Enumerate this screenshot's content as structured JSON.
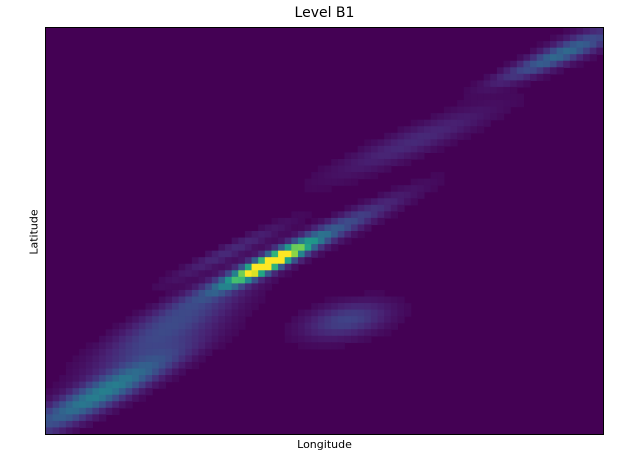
{
  "chart_data": {
    "type": "heatmap",
    "title": "Level B1",
    "xlabel": "Longitude",
    "ylabel": "Latitude",
    "colormap": "viridis",
    "background_value": 0,
    "peak_value": 1,
    "grid": false,
    "ticks": false,
    "blobs": [
      {
        "name": "main-core",
        "cx": 0.4,
        "cy": 0.58,
        "sx": 0.055,
        "sy": 0.01,
        "angle_deg": -34,
        "amp": 1.0
      },
      {
        "name": "main-ridge",
        "cx": 0.44,
        "cy": 0.55,
        "sx": 0.14,
        "sy": 0.016,
        "angle_deg": -34,
        "amp": 0.35
      },
      {
        "name": "lower-left-band",
        "cx": 0.1,
        "cy": 0.9,
        "sx": 0.12,
        "sy": 0.022,
        "angle_deg": -36,
        "amp": 0.42
      },
      {
        "name": "left-mid-band",
        "cx": 0.22,
        "cy": 0.74,
        "sx": 0.11,
        "sy": 0.03,
        "angle_deg": -38,
        "amp": 0.22
      },
      {
        "name": "upper-left-faint",
        "cx": 0.33,
        "cy": 0.55,
        "sx": 0.09,
        "sy": 0.012,
        "angle_deg": -34,
        "amp": 0.12
      },
      {
        "name": "lower-blob",
        "cx": 0.54,
        "cy": 0.72,
        "sx": 0.055,
        "sy": 0.028,
        "angle_deg": -18,
        "amp": 0.2
      },
      {
        "name": "mid-faint-ridge",
        "cx": 0.66,
        "cy": 0.28,
        "sx": 0.12,
        "sy": 0.022,
        "angle_deg": -30,
        "amp": 0.12
      },
      {
        "name": "upper-right-streak",
        "cx": 0.9,
        "cy": 0.08,
        "sx": 0.075,
        "sy": 0.014,
        "angle_deg": -30,
        "amp": 0.25
      },
      {
        "name": "upper-right-glow",
        "cx": 0.96,
        "cy": 0.04,
        "sx": 0.06,
        "sy": 0.02,
        "angle_deg": -30,
        "amp": 0.15
      }
    ]
  }
}
